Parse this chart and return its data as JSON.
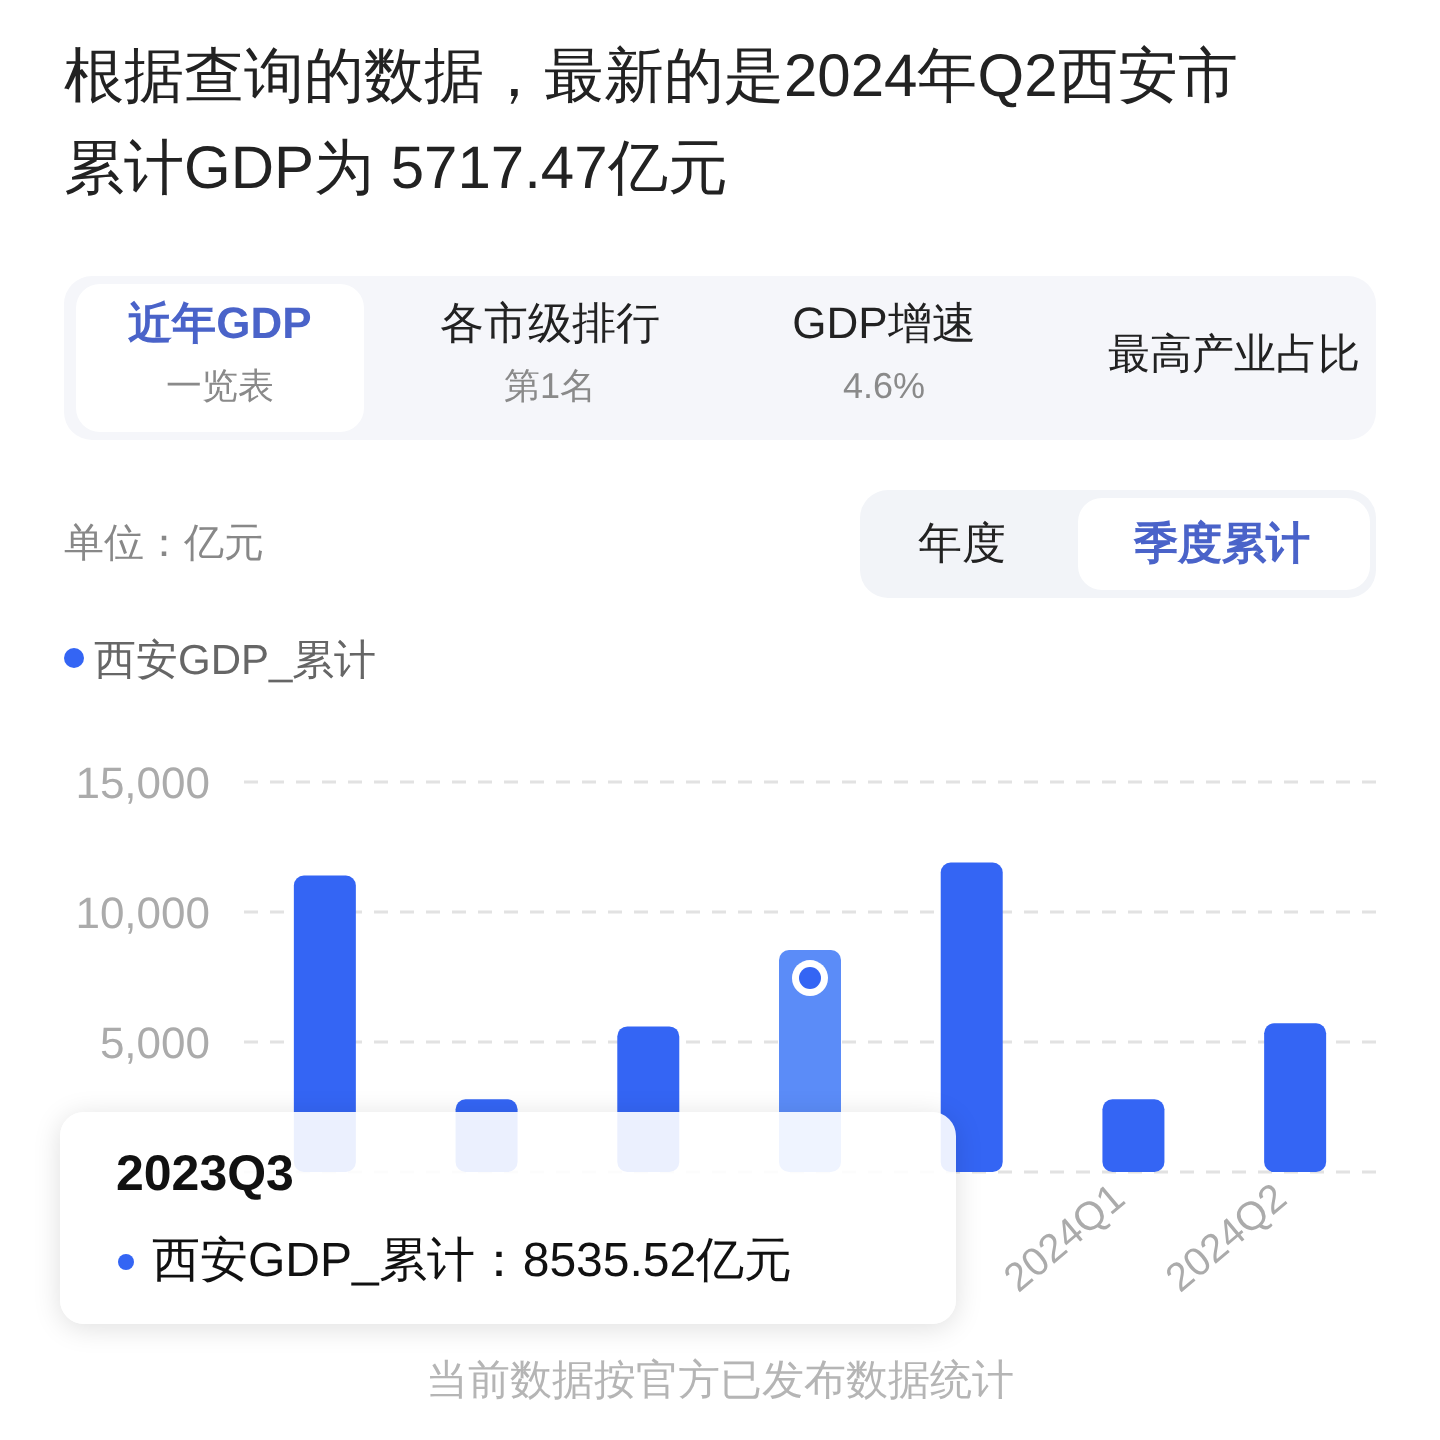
{
  "chart_data": {
    "type": "bar",
    "title": "根据查询的数据，最新的是2024年Q2西安市累计GDP为 5717.47亿元",
    "ylabel": "单位：亿元",
    "categories": [
      null,
      null,
      null,
      null,
      null,
      "2024Q1",
      "2024Q2"
    ],
    "series": [
      {
        "name": "西安GDP_累计",
        "color": "#3465f4",
        "colors": [
          "#3465f4",
          "#3465f4",
          "#3465f4",
          "#5b8cf8",
          "#3465f4",
          "#3465f4",
          "#3465f4"
        ],
        "values": [
          11400,
          2800,
          5600,
          8535.52,
          11900,
          2800,
          5717.47
        ]
      }
    ],
    "ylim": [
      0,
      15000
    ],
    "yticks": [
      {
        "value": 0,
        "label": null
      },
      {
        "value": 5000,
        "label": "5,000"
      },
      {
        "value": 10000,
        "label": "10,000"
      },
      {
        "value": 15000,
        "label": "15,000"
      }
    ],
    "grid": "y",
    "legend": "top left",
    "annotations": [
      "近年GDP",
      "一览表",
      "各市级排行",
      "第1名",
      "GDP增速",
      "4.6%",
      "最高产业占比",
      "年度",
      "季度累计",
      "2023Q3",
      "西安GDP_累计：8535.52亿元",
      "当前数据按官方已发布数据统计"
    ]
  }
}
